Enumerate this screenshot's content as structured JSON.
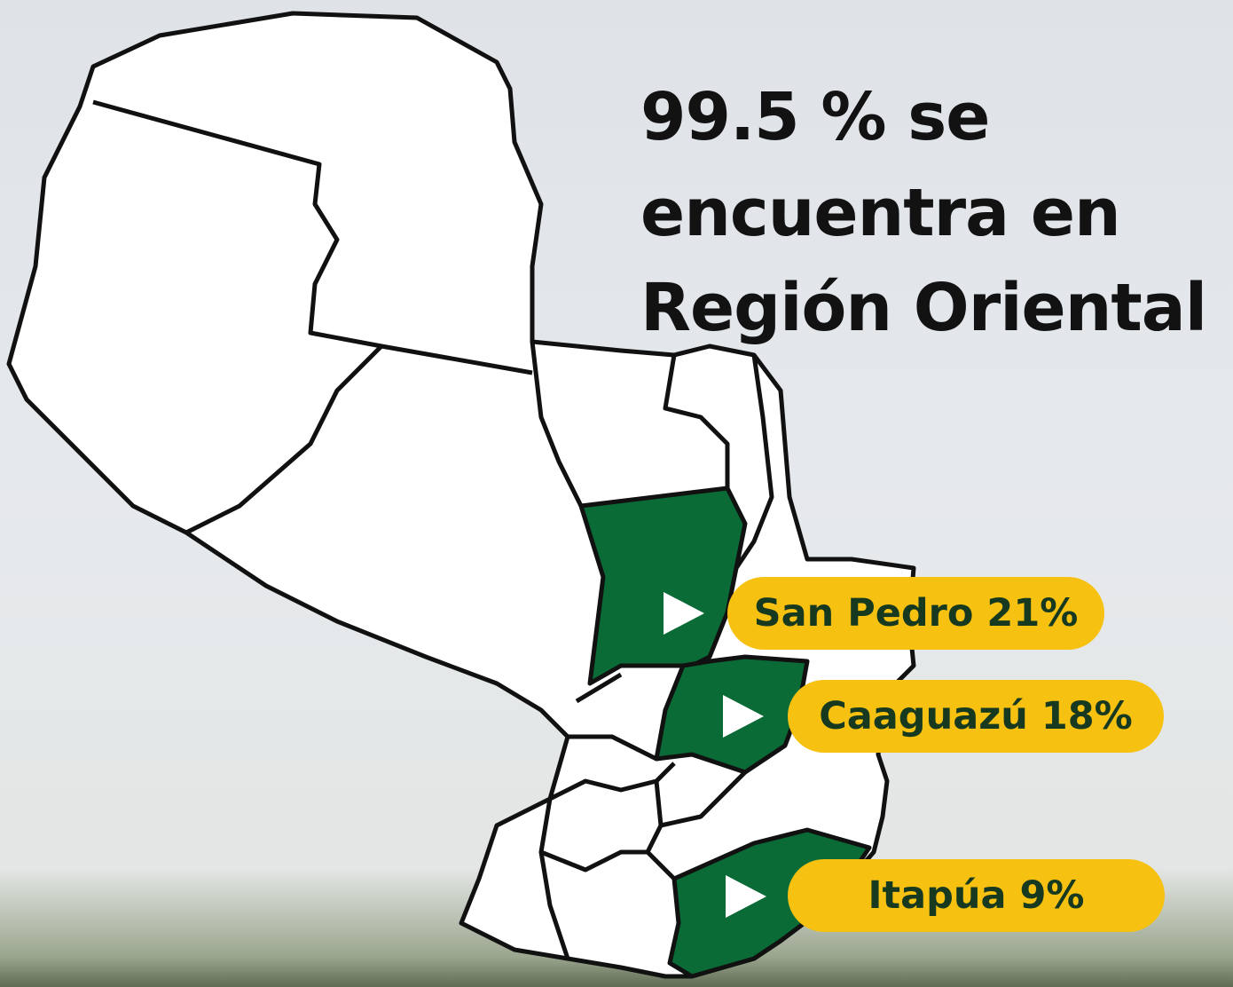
{
  "headline": {
    "lines": [
      "99.5 % se",
      "encuentra en",
      "Región Oriental"
    ]
  },
  "labels": [
    "San Pedro 21%",
    "Caaguazú 18%",
    "Itapúa 9%"
  ]
}
